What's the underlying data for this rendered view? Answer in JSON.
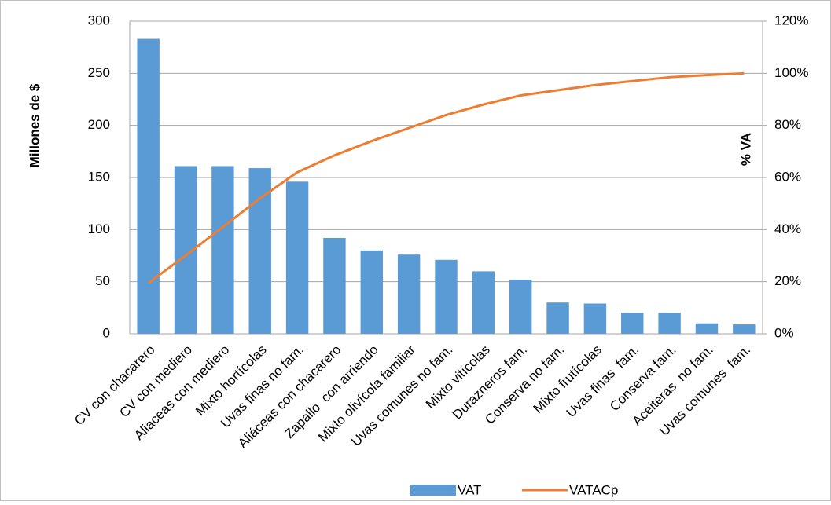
{
  "chart_data": {
    "type": "pareto",
    "categories": [
      "CV con chacarero",
      "CV con mediero",
      "Aliaceas con mediero",
      "Mixto hortícolas",
      "Uvas finas no fam.",
      "Aliáceas con chacarero",
      "Zapallo  con arriendo",
      "Mixto olivícola familiar",
      "Uvas comunes no fam.",
      "Mixto vitícolas",
      "Durazneros fam.",
      "Conserva no fam.",
      "Mixto frutícolas",
      "Uvas finas  fam.",
      "Conserva fam.",
      "Aceiteras  no fam.",
      "Uvas comunes  fam."
    ],
    "series": [
      {
        "name": "VAT",
        "type": "bar",
        "color": "#5b9bd5",
        "values": [
          283,
          161,
          161,
          159,
          146,
          92,
          80,
          76,
          71,
          60,
          52,
          30,
          29,
          20,
          20,
          10,
          9
        ]
      },
      {
        "name": "VATACp",
        "type": "line",
        "axis": "y2",
        "color": "#ed7d31",
        "values": [
          19.5,
          30,
          41,
          52,
          62,
          68.5,
          74,
          79,
          84,
          88,
          91.5,
          93.5,
          95.5,
          97,
          98.5,
          99.3,
          100
        ]
      }
    ],
    "y_label": "Millones de $",
    "y2_label": "% VA",
    "ylim": [
      0,
      300
    ],
    "yticks": [
      0,
      50,
      100,
      150,
      200,
      250,
      300
    ],
    "y2lim": [
      0,
      120
    ],
    "y2ticks": [
      {
        "value": 0,
        "label": "0%"
      },
      {
        "value": 20,
        "label": "20%"
      },
      {
        "value": 40,
        "label": "40%"
      },
      {
        "value": 60,
        "label": "60%"
      },
      {
        "value": 80,
        "label": "80%"
      },
      {
        "value": 100,
        "label": "100%"
      },
      {
        "value": 120,
        "label": "120%"
      }
    ],
    "grid": true,
    "legend": "bottom"
  }
}
